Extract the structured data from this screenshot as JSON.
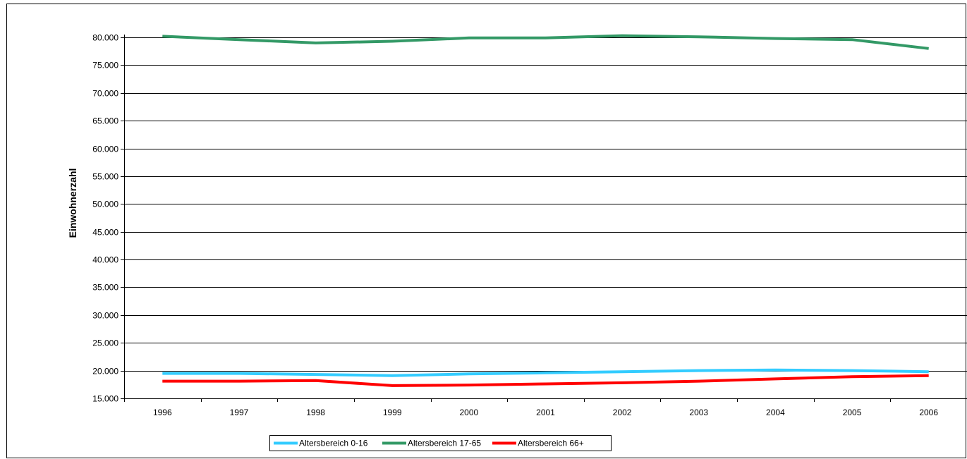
{
  "chart_data": {
    "type": "line",
    "title": "",
    "xlabel": "",
    "ylabel": "Einwohnerzahl",
    "categories": [
      "1996",
      "1997",
      "1998",
      "1999",
      "2000",
      "2001",
      "2002",
      "2003",
      "2004",
      "2005",
      "2006"
    ],
    "ylim": [
      15000,
      80000
    ],
    "yticks": [
      15000,
      20000,
      25000,
      30000,
      35000,
      40000,
      45000,
      50000,
      55000,
      60000,
      65000,
      70000,
      75000,
      80000
    ],
    "ytick_labels": [
      "15.000",
      "20.000",
      "25.000",
      "30.000",
      "35.000",
      "40.000",
      "45.000",
      "50.000",
      "55.000",
      "60.000",
      "65.000",
      "70.000",
      "75.000",
      "80.000"
    ],
    "grid": true,
    "legend_position": "bottom",
    "series": [
      {
        "name": "Altersbereich 0-16",
        "color": "#33ccff",
        "values": [
          19500,
          19500,
          19300,
          19100,
          19400,
          19600,
          19800,
          20000,
          20100,
          20000,
          19800
        ]
      },
      {
        "name": "Altersbereich 17-65",
        "color": "#339966",
        "values": [
          80200,
          79600,
          79000,
          79300,
          79900,
          79900,
          80300,
          80100,
          79800,
          79600,
          78000
        ]
      },
      {
        "name": "Altersbereich 66+",
        "color": "#ff0000",
        "values": [
          18100,
          18100,
          18200,
          17300,
          17400,
          17600,
          17800,
          18100,
          18500,
          18900,
          19100
        ]
      }
    ]
  }
}
